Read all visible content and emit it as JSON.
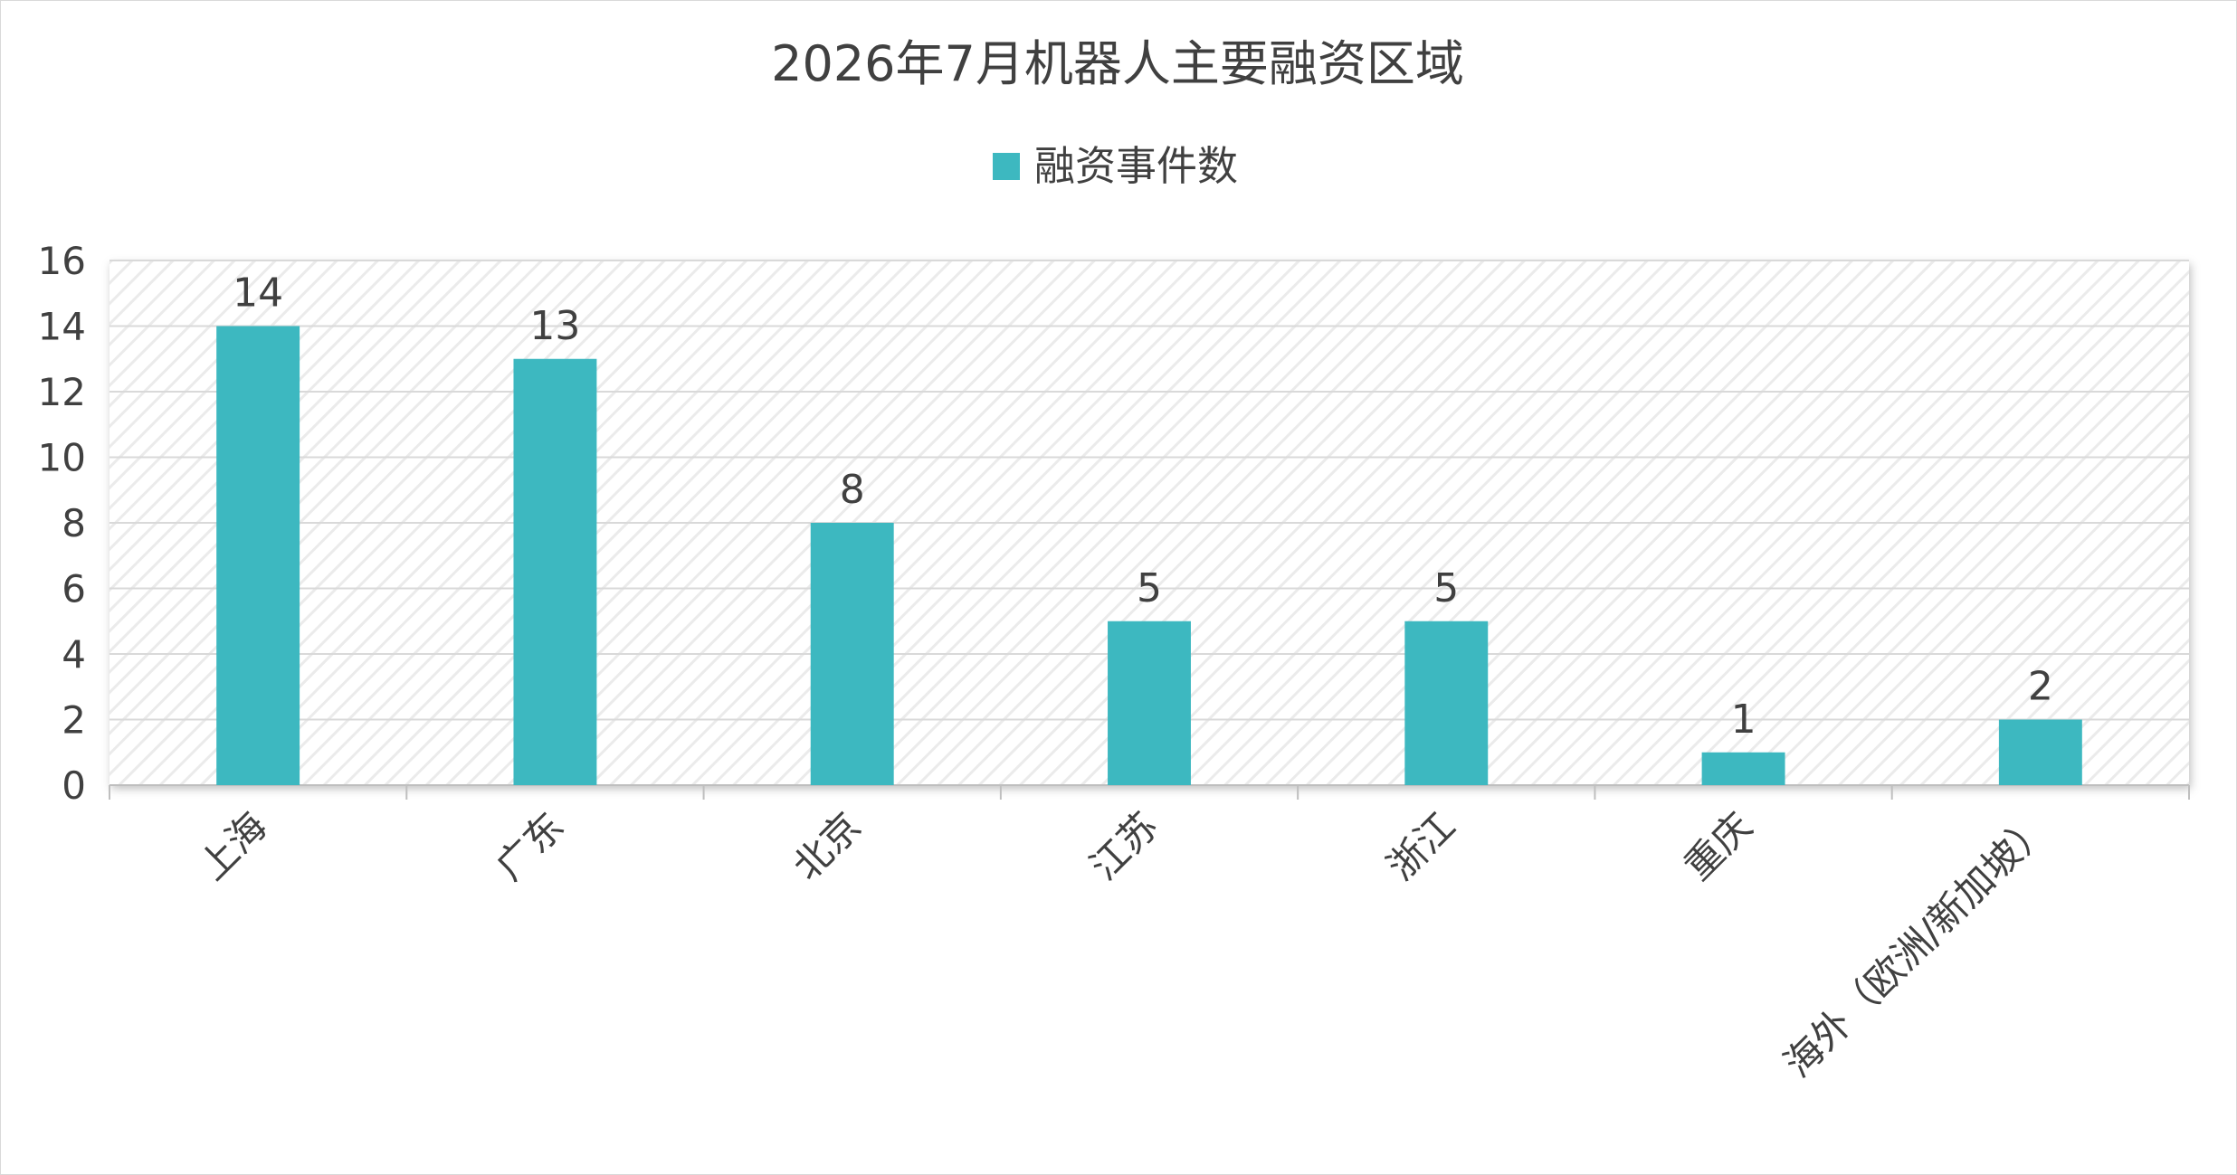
{
  "chart_data": {
    "type": "bar",
    "title": "2026年7月机器人主要融资区域",
    "categories": [
      "上海",
      "广东",
      "北京",
      "江苏",
      "浙江",
      "重庆",
      "海外（欧洲/新加坡）"
    ],
    "series": [
      {
        "name": "融资事件数",
        "values": [
          14,
          13,
          8,
          5,
          5,
          1,
          2
        ]
      }
    ],
    "data_labels": [
      "14",
      "13",
      "8",
      "5",
      "5",
      "1",
      "2"
    ],
    "y_ticks": [
      "0",
      "2",
      "4",
      "6",
      "8",
      "10",
      "12",
      "14",
      "16"
    ],
    "ylim": [
      0,
      16
    ],
    "legend_position": "top-center",
    "grid": true,
    "plot_background": "light diagonal hatch",
    "colors": {
      "bar": "#3DB8C0",
      "gridline": "#d9d9d9",
      "text": "#404040"
    }
  }
}
